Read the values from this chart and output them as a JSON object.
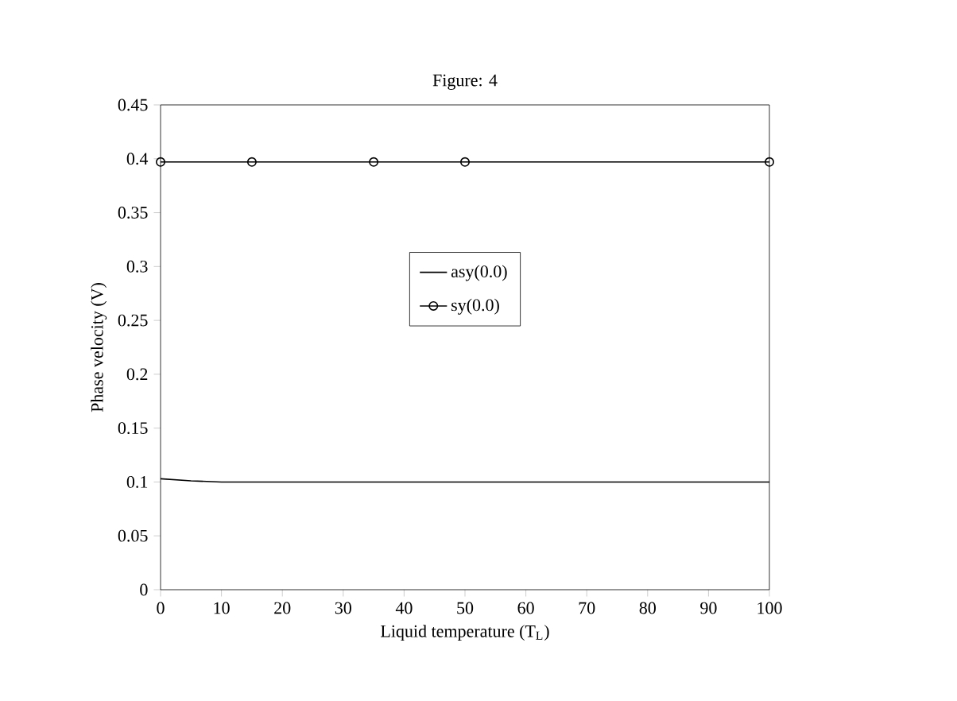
{
  "chart_data": {
    "type": "line",
    "title": "Figure: 4",
    "xlabel": "Liquid temperature (T$_{L}$)",
    "ylabel": "Phase velocity (V)",
    "series": [
      {
        "name": "asy(0.0)",
        "color": "#000000",
        "marker": "none",
        "x": [
          0,
          5,
          10,
          15,
          20,
          30,
          40,
          50,
          60,
          70,
          80,
          90,
          100
        ],
        "values": [
          0.103,
          0.101,
          0.1,
          0.1,
          0.1,
          0.1,
          0.1,
          0.1,
          0.1,
          0.1,
          0.1,
          0.1,
          0.1
        ]
      },
      {
        "name": "sy(0.0)",
        "color": "#000000",
        "marker": "circle",
        "x": [
          0,
          15,
          35,
          50,
          100
        ],
        "values": [
          0.397,
          0.397,
          0.397,
          0.397,
          0.397
        ]
      }
    ],
    "xlim": [
      0,
      100
    ],
    "xticks": [
      0,
      10,
      20,
      30,
      40,
      50,
      60,
      70,
      80,
      90,
      100
    ],
    "ylim": [
      0,
      0.45
    ],
    "yticks": [
      0,
      0.05,
      0.1,
      0.15,
      0.2,
      0.25,
      0.3,
      0.35,
      0.4,
      0.45
    ],
    "grid": false,
    "legend": "center",
    "line_style": "solid"
  }
}
